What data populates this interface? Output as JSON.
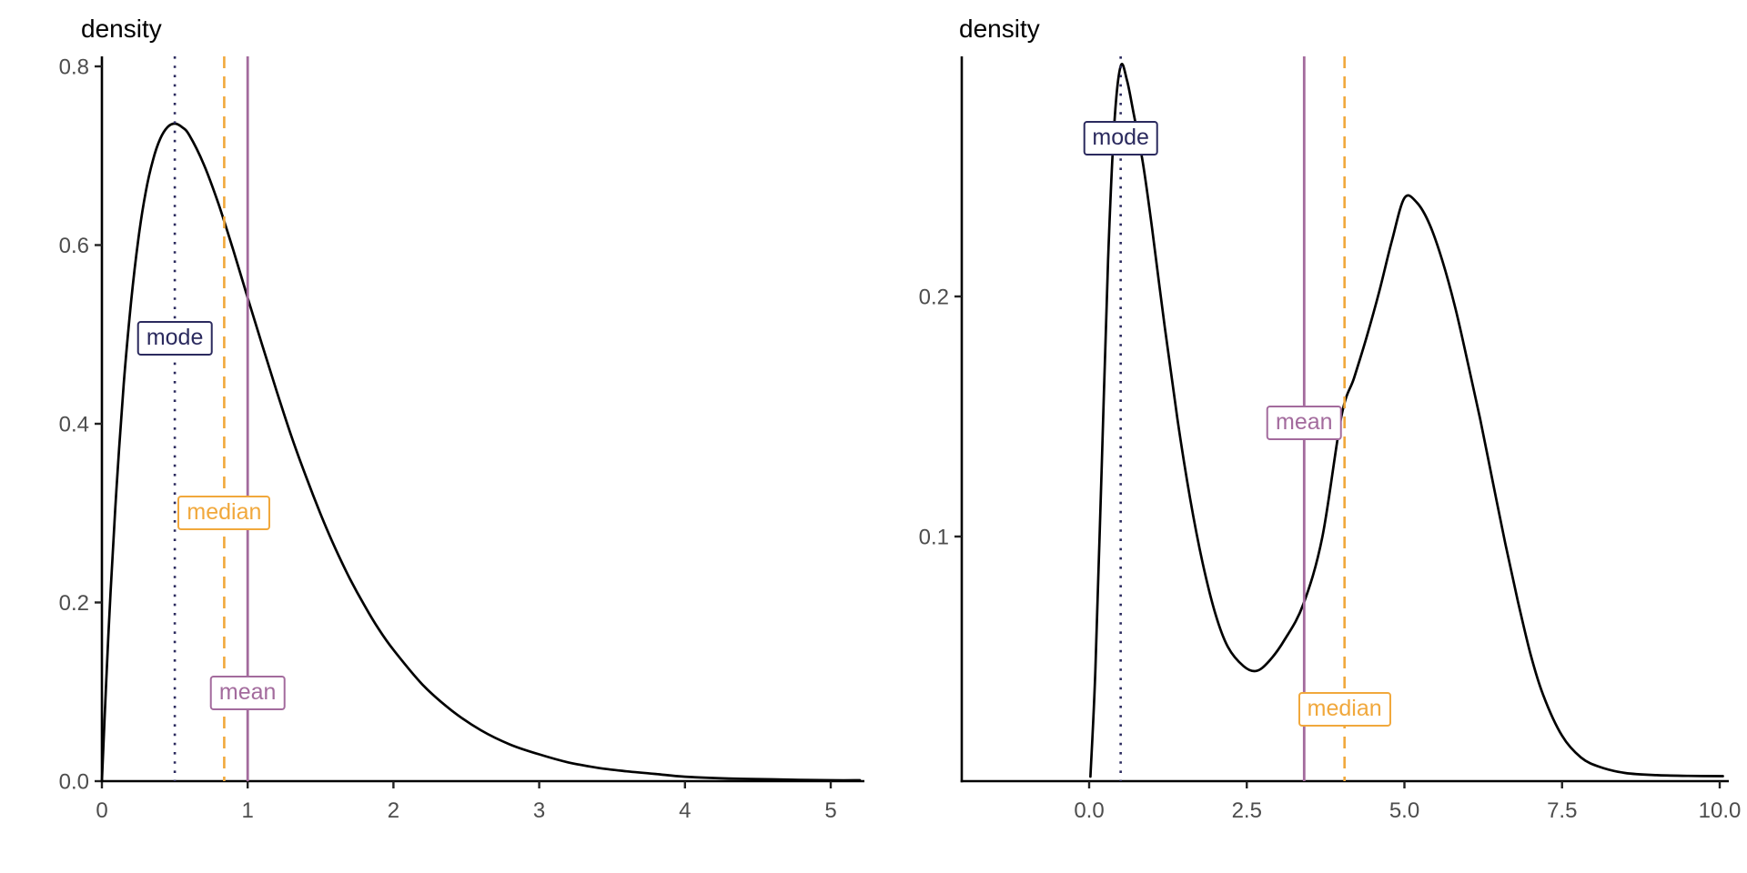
{
  "figure": {
    "description": "Two density plots comparing mode, median and mean locations",
    "background": "#ffffff"
  },
  "colors": {
    "mode": "#2B2A5E",
    "median": "#F1A83C",
    "mean": "#A36B9D",
    "curve": "#000000",
    "axis_line": "#000000",
    "tick_mark": "#222222",
    "tick_text": "#4D4D4D",
    "label_background": "#ffffff"
  },
  "chart_data": [
    {
      "type": "line",
      "subtype": "density-curve",
      "title": "density",
      "xlabel": "",
      "ylabel": "density",
      "grid": false,
      "legend": "none",
      "xlim": [
        0,
        5.2
      ],
      "ylim": [
        0,
        0.81
      ],
      "x_ticks": {
        "values": [
          0,
          1,
          2,
          3,
          4,
          5
        ],
        "labels": [
          "0",
          "1",
          "2",
          "3",
          "4",
          "5"
        ]
      },
      "y_ticks": {
        "values": [
          0,
          0.2,
          0.4,
          0.6,
          0.8
        ],
        "labels": [
          "0.0",
          "0.2",
          "0.4",
          "0.6",
          "0.8"
        ]
      },
      "curve_points": {
        "x": [
          0,
          0.03,
          0.06,
          0.1,
          0.15,
          0.2,
          0.25,
          0.3,
          0.35,
          0.4,
          0.45,
          0.5,
          0.55,
          0.6,
          0.7,
          0.8,
          0.9,
          1.0,
          1.1,
          1.2,
          1.3,
          1.4,
          1.5,
          1.6,
          1.7,
          1.8,
          1.9,
          2.0,
          2.2,
          2.4,
          2.6,
          2.8,
          3.0,
          3.2,
          3.4,
          3.6,
          3.8,
          4.0,
          4.3,
          4.6,
          5.0,
          5.2
        ],
        "y": [
          0,
          0.113,
          0.213,
          0.327,
          0.445,
          0.536,
          0.607,
          0.659,
          0.695,
          0.719,
          0.732,
          0.736,
          0.732,
          0.723,
          0.69,
          0.646,
          0.595,
          0.541,
          0.488,
          0.436,
          0.386,
          0.341,
          0.299,
          0.261,
          0.227,
          0.197,
          0.17,
          0.147,
          0.108,
          0.079,
          0.057,
          0.041,
          0.03,
          0.021,
          0.015,
          0.011,
          0.008,
          0.005,
          0.003,
          0.002,
          0.001,
          0.001
        ]
      },
      "peak": {
        "x": 0.5,
        "density": 0.736
      },
      "annotations": [
        {
          "label": "mode",
          "x": 0.5,
          "line_style": "dotted",
          "label_y": 0.496
        },
        {
          "label": "median",
          "x": 0.839,
          "line_style": "dashed",
          "label_y": 0.3
        },
        {
          "label": "mean",
          "x": 1.0,
          "line_style": "solid",
          "label_y": 0.099
        }
      ]
    },
    {
      "type": "line",
      "subtype": "density-curve",
      "title": "density",
      "xlabel": "",
      "ylabel": "density",
      "grid": false,
      "legend": "none",
      "xlim": [
        -2,
        10.1
      ],
      "ylim": [
        0,
        0.3
      ],
      "x_ticks": {
        "values": [
          0,
          2.5,
          5,
          7.5,
          10
        ],
        "labels": [
          "0.0",
          "2.5",
          "5.0",
          "7.5",
          "10.0"
        ]
      },
      "y_ticks": {
        "values": [
          0.1,
          0.2
        ],
        "labels": [
          "0.1",
          "0.2"
        ]
      },
      "curve_points": {
        "x": [
          0.02,
          0.1,
          0.2,
          0.3,
          0.4,
          0.5,
          0.6,
          0.7,
          0.85,
          1.0,
          1.2,
          1.4,
          1.6,
          1.8,
          2.0,
          2.2,
          2.45,
          2.65,
          2.85,
          3.1,
          3.4,
          3.7,
          4.0,
          4.2,
          4.4,
          4.6,
          4.8,
          5.0,
          5.2,
          5.4,
          5.6,
          5.8,
          6.0,
          6.2,
          6.4,
          6.6,
          6.8,
          7.0,
          7.2,
          7.5,
          7.8,
          8.1,
          8.5,
          9.0,
          9.5,
          10.05
        ],
        "y": [
          0,
          0.045,
          0.13,
          0.215,
          0.272,
          0.296,
          0.29,
          0.277,
          0.256,
          0.228,
          0.187,
          0.149,
          0.116,
          0.089,
          0.068,
          0.054,
          0.046,
          0.044,
          0.048,
          0.057,
          0.072,
          0.1,
          0.15,
          0.166,
          0.183,
          0.202,
          0.223,
          0.241,
          0.239,
          0.23,
          0.215,
          0.196,
          0.173,
          0.149,
          0.123,
          0.097,
          0.073,
          0.051,
          0.034,
          0.017,
          0.008,
          0.004,
          0.0015,
          0.0006,
          0.0003,
          0.0002
        ]
      },
      "peaks": [
        {
          "x": 0.5,
          "density": 0.296
        },
        {
          "x": 5.0,
          "density": 0.241
        }
      ],
      "annotations": [
        {
          "label": "mode",
          "x": 0.5,
          "line_style": "dotted",
          "label_y": 0.266
        },
        {
          "label": "mean",
          "x": 3.41,
          "line_style": "solid",
          "label_y": 0.1475
        },
        {
          "label": "median",
          "x": 4.05,
          "line_style": "dashed",
          "label_y": 0.028
        }
      ]
    }
  ]
}
